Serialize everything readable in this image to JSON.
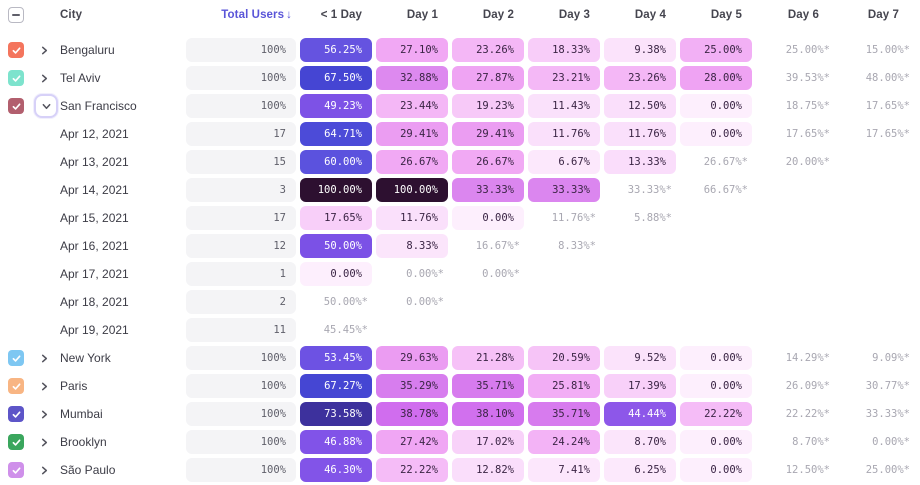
{
  "table": {
    "select_all_state": "indeterminate",
    "columns": {
      "city": "City",
      "total_users": "Total Users",
      "sort_arrow": "↓",
      "days": [
        "< 1 Day",
        "Day 1",
        "Day 2",
        "Day 3",
        "Day 4",
        "Day 5",
        "Day 6",
        "Day 7"
      ]
    },
    "rows": [
      {
        "type": "city",
        "label": "Bengaluru",
        "checkbox_color": "#f4755d",
        "expanded": false,
        "total": "100%",
        "cells": [
          "56.25%",
          "27.10%",
          "23.26%",
          "18.33%",
          "9.38%",
          "25.00%",
          "25.00%*",
          "15.00%*"
        ]
      },
      {
        "type": "city",
        "label": "Tel Aviv",
        "checkbox_color": "#7de3cd",
        "expanded": false,
        "total": "100%",
        "cells": [
          "67.50%",
          "32.88%",
          "27.87%",
          "23.21%",
          "23.26%",
          "28.00%",
          "39.53%*",
          "48.00%*"
        ]
      },
      {
        "type": "city",
        "label": "San Francisco",
        "checkbox_color": "#b25f6e",
        "expanded": true,
        "total": "100%",
        "cells": [
          "49.23%",
          "23.44%",
          "19.23%",
          "11.43%",
          "12.50%",
          "0.00%",
          "18.75%*",
          "17.65%*"
        ]
      },
      {
        "type": "date",
        "label": "Apr 12, 2021",
        "total": "17",
        "cells": [
          "64.71%",
          "29.41%",
          "29.41%",
          "11.76%",
          "11.76%",
          "0.00%",
          "17.65%*",
          "17.65%*"
        ]
      },
      {
        "type": "date",
        "label": "Apr 13, 2021",
        "total": "15",
        "cells": [
          "60.00%",
          "26.67%",
          "26.67%",
          "6.67%",
          "13.33%",
          "26.67%*",
          "20.00%*",
          ""
        ]
      },
      {
        "type": "date",
        "label": "Apr 14, 2021",
        "total": "3",
        "cells": [
          "100.00%",
          "100.00%",
          "33.33%",
          "33.33%",
          "33.33%*",
          "66.67%*",
          "",
          ""
        ]
      },
      {
        "type": "date",
        "label": "Apr 15, 2021",
        "total": "17",
        "cells": [
          "17.65%",
          "11.76%",
          "0.00%",
          "11.76%*",
          "5.88%*",
          "",
          "",
          ""
        ]
      },
      {
        "type": "date",
        "label": "Apr 16, 2021",
        "total": "12",
        "cells": [
          "50.00%",
          "8.33%",
          "16.67%*",
          "8.33%*",
          "",
          "",
          "",
          ""
        ]
      },
      {
        "type": "date",
        "label": "Apr 17, 2021",
        "total": "1",
        "cells": [
          "0.00%",
          "0.00%*",
          "0.00%*",
          "",
          "",
          "",
          "",
          ""
        ]
      },
      {
        "type": "date",
        "label": "Apr 18, 2021",
        "total": "2",
        "cells": [
          "50.00%*",
          "0.00%*",
          "",
          "",
          "",
          "",
          "",
          ""
        ]
      },
      {
        "type": "date",
        "label": "Apr 19, 2021",
        "total": "11",
        "cells": [
          "45.45%*",
          "",
          "",
          "",
          "",
          "",
          "",
          ""
        ]
      },
      {
        "type": "city",
        "label": "New York",
        "checkbox_color": "#7ec7f2",
        "expanded": false,
        "total": "100%",
        "cells": [
          "53.45%",
          "29.63%",
          "21.28%",
          "20.59%",
          "9.52%",
          "0.00%",
          "14.29%*",
          "9.09%*"
        ]
      },
      {
        "type": "city",
        "label": "Paris",
        "checkbox_color": "#f8b583",
        "expanded": false,
        "total": "100%",
        "cells": [
          "67.27%",
          "35.29%",
          "35.71%",
          "25.81%",
          "17.39%",
          "0.00%",
          "26.09%*",
          "30.77%*"
        ]
      },
      {
        "type": "city",
        "label": "Mumbai",
        "checkbox_color": "#5d55c8",
        "expanded": false,
        "total": "100%",
        "cells": [
          "73.58%",
          "38.78%",
          "38.10%",
          "35.71%",
          "44.44%",
          "22.22%",
          "22.22%*",
          "33.33%*"
        ]
      },
      {
        "type": "city",
        "label": "Brooklyn",
        "checkbox_color": "#3aa65d",
        "expanded": false,
        "total": "100%",
        "cells": [
          "46.88%",
          "27.42%",
          "17.02%",
          "24.24%",
          "8.70%",
          "0.00%",
          "8.70%*",
          "0.00%*"
        ]
      },
      {
        "type": "city",
        "label": "São Paulo",
        "checkbox_color": "#cf90ea",
        "expanded": false,
        "total": "100%",
        "cells": [
          "46.30%",
          "22.22%",
          "12.82%",
          "7.41%",
          "6.25%",
          "0.00%",
          "12.50%*",
          "25.00%*"
        ]
      }
    ]
  },
  "colors": {
    "sort_header": "#5a55d8",
    "header_text": "#45454f",
    "label_text": "#3c3c46",
    "gray_value_text": "#a8a7b1",
    "total_pill_bg": "#f4f4f6",
    "total_pill_text": "#5f5f6a",
    "pill_dark_text": "#3a2444",
    "pill_white_text": "#ffffff",
    "white_text_min_value": 42,
    "chevron": "#55555f",
    "focus_ring_border": "#d7d1f8",
    "checkbox_border": "#b9b9c3",
    "heat_stops": [
      [
        0,
        "#fdeffd"
      ],
      [
        6,
        "#fce9fc"
      ],
      [
        9,
        "#fbe4fb"
      ],
      [
        12,
        "#fae0fb"
      ],
      [
        15,
        "#f9d9fa"
      ],
      [
        18,
        "#f8cef9"
      ],
      [
        21,
        "#f6c2f7"
      ],
      [
        24,
        "#f3b4f6"
      ],
      [
        27,
        "#f1a8f4"
      ],
      [
        30,
        "#ea9af2"
      ],
      [
        33,
        "#dc88ef"
      ],
      [
        36,
        "#d67aee"
      ],
      [
        39,
        "#cf6cee"
      ],
      [
        42,
        "#9c5ceb"
      ],
      [
        46,
        "#8354e8"
      ],
      [
        50,
        "#7b51e6"
      ],
      [
        54,
        "#6b52e2"
      ],
      [
        58,
        "#6054df"
      ],
      [
        62,
        "#5650dc"
      ],
      [
        66,
        "#4748d6"
      ],
      [
        70,
        "#4141cd"
      ],
      [
        74,
        "#3c2f97"
      ],
      [
        82,
        "#342067"
      ],
      [
        100,
        "#2d1030"
      ]
    ]
  }
}
